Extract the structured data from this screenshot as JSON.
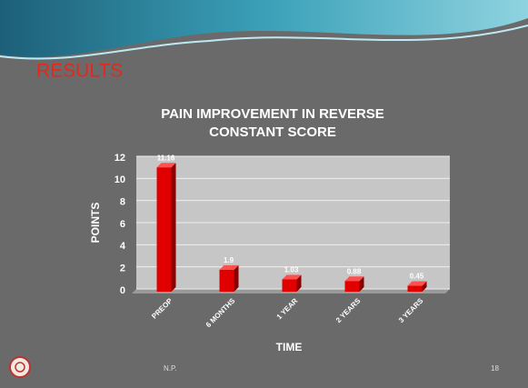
{
  "heading": "RESULTS",
  "chart_data": {
    "type": "bar",
    "title": [
      "PAIN IMPROVEMENT IN REVERSE",
      "CONSTANT SCORE"
    ],
    "x_label": "TIME",
    "y_label": "POINTS",
    "categories": [
      "PREOP",
      "6 MONTHS",
      "1 YEAR",
      "2 YEARS",
      "3 YEARS"
    ],
    "values": [
      11.16,
      1.9,
      1.03,
      0.88,
      0.45
    ],
    "color": "#e00000",
    "ylim": [
      0,
      12
    ],
    "yticks": [
      0,
      2,
      4,
      6,
      8,
      10,
      12
    ],
    "grid": true
  },
  "footer": {
    "author": "N.P.",
    "page": "18"
  }
}
